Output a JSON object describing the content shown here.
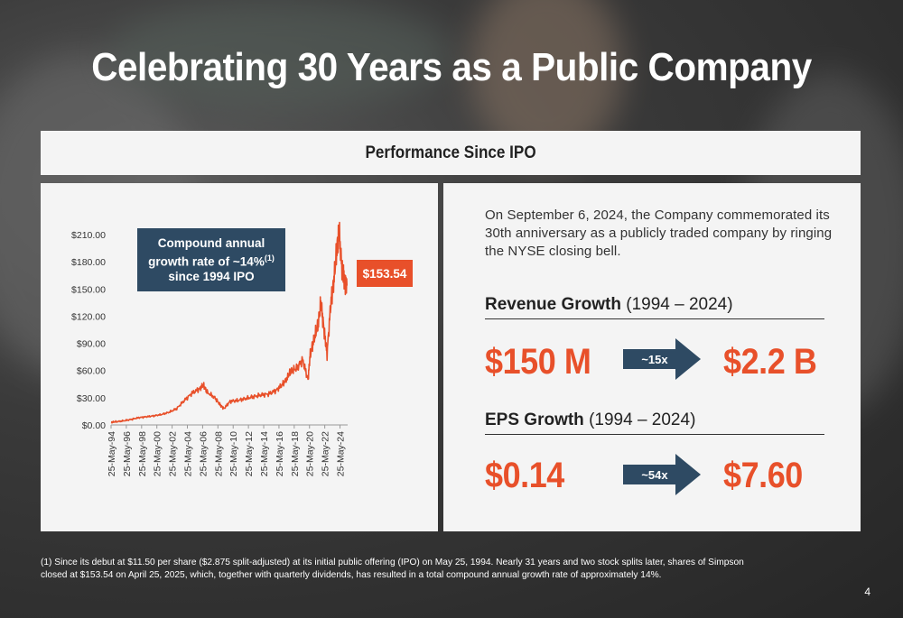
{
  "title": "Celebrating 30 Years as a Public Company",
  "header": "Performance Since IPO",
  "callout": {
    "line1": "Compound annual",
    "line2": "growth rate of ~14%",
    "line2_sup": "(1)",
    "line3": "since 1994 IPO"
  },
  "price_tag": "$153.54",
  "description": "On September 6, 2024, the Company commemorated its 30th anniversary as a publicly traded company by ringing the NYSE closing bell.",
  "revenue": {
    "label_bold": "Revenue Growth",
    "label_range": "(1994 – 2024)",
    "start": "$150 M",
    "multiple": "~15x",
    "end": "$2.2 B"
  },
  "eps": {
    "label_bold": "EPS Growth",
    "label_range": "(1994 – 2024)",
    "start": "$0.14",
    "multiple": "~54x",
    "end": "$7.60"
  },
  "footnote": "(1) Since its debut at $11.50 per share ($2.875 split-adjusted) at its initial public offering (IPO) on May 25, 1994. Nearly 31 years and two stock splits later, shares of Simpson closed at $153.54 on April 25, 2025, which, together with quarterly dividends, has resulted in a total compound annual growth rate of approximately 14%.",
  "page_number": "4",
  "colors": {
    "accent": "#e8502a",
    "navy": "#2e4a63"
  },
  "chart_data": {
    "type": "line",
    "title": "",
    "xlabel": "",
    "ylabel": "",
    "ylim": [
      0,
      210
    ],
    "y_ticks": [
      "$0.00",
      "$30.00",
      "$60.00",
      "$90.00",
      "$120.00",
      "$150.00",
      "$180.00",
      "$210.00"
    ],
    "x_ticks": [
      "25-May-94",
      "25-May-96",
      "25-May-98",
      "25-May-00",
      "25-May-02",
      "25-May-04",
      "25-May-06",
      "25-May-08",
      "25-May-10",
      "25-May-12",
      "25-May-14",
      "25-May-16",
      "25-May-18",
      "25-May-20",
      "25-May-22",
      "25-May-24"
    ],
    "series": [
      {
        "color": "#e8502a",
        "x": [
          1994.4,
          1995,
          1996,
          1997,
          1998,
          1999,
          2000,
          2001,
          2002,
          2003,
          2004,
          2005,
          2006,
          2006.5,
          2007,
          2008,
          2008.7,
          2009.2,
          2010,
          2011,
          2012,
          2013,
          2014,
          2015,
          2016,
          2016.8,
          2017.5,
          2018,
          2018.7,
          2019.5,
          2020.2,
          2020.5,
          2021,
          2021.5,
          2021.9,
          2022.3,
          2022.7,
          2023.2,
          2023.6,
          2024.0,
          2024.3,
          2024.7,
          2025.0,
          2025.3
        ],
        "y": [
          2.9,
          3.5,
          4.5,
          6,
          8,
          9,
          10,
          11.5,
          14,
          18,
          27,
          35,
          40,
          44,
          36,
          30,
          22,
          18,
          26,
          27,
          29,
          31,
          33,
          34,
          38,
          44,
          52,
          60,
          62,
          72,
          50,
          78,
          95,
          110,
          135,
          105,
          78,
          135,
          160,
          195,
          210,
          170,
          160,
          153.54
        ]
      }
    ]
  }
}
